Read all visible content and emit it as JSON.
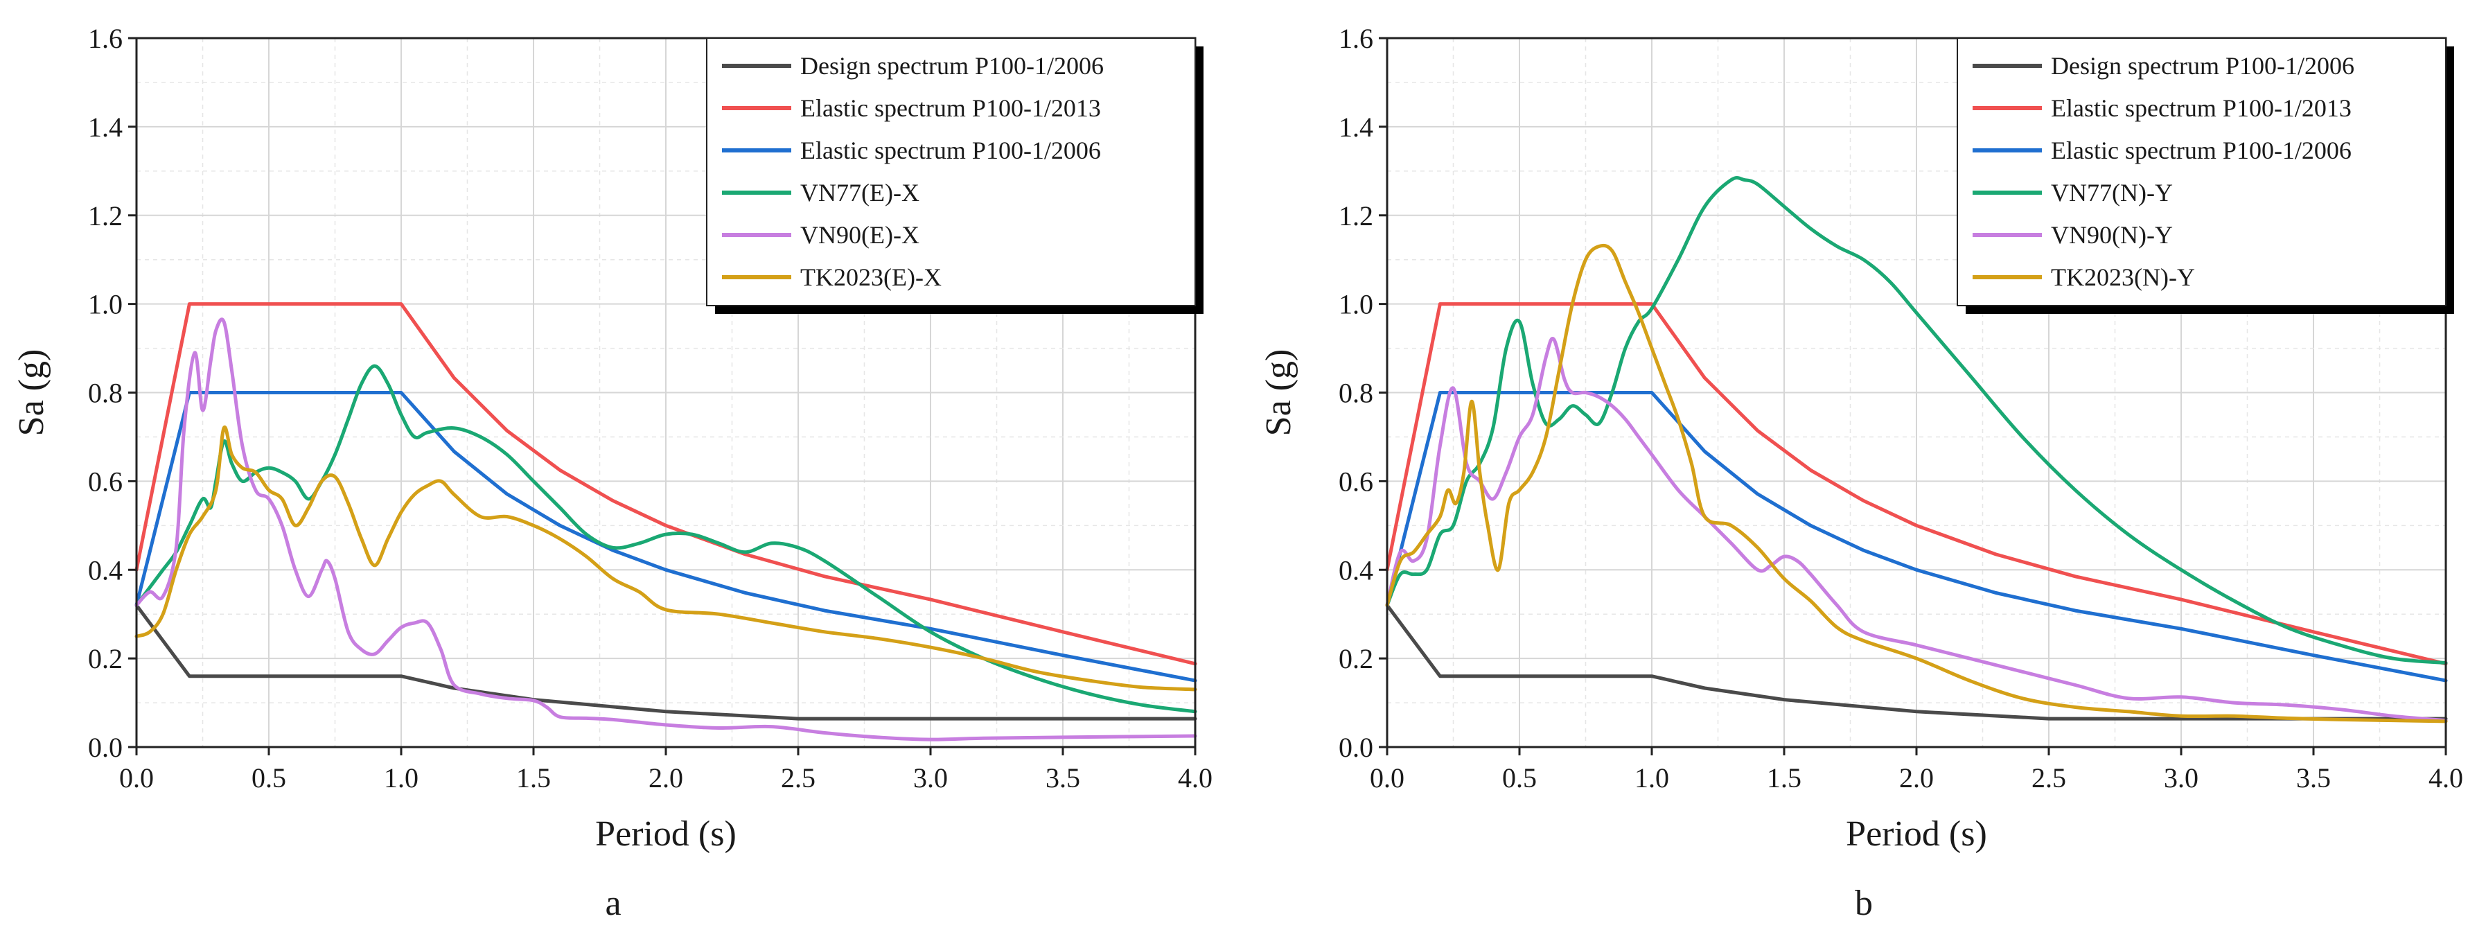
{
  "panels": [
    {
      "label": "a",
      "xlabel": "Period (s)",
      "ylabel": "Sa (g)"
    },
    {
      "label": "b",
      "xlabel": "Period (s)",
      "ylabel": "Sa (g)"
    }
  ],
  "colors": {
    "design": "#4a4a4a",
    "elastic_2013": "#f05050",
    "elastic_2006": "#1f6fd0",
    "vn77": "#1aa873",
    "vn90": "#c77ee0",
    "tk2023": "#d4a017"
  },
  "chart_data": [
    {
      "type": "line",
      "xlim": [
        0.0,
        4.0
      ],
      "ylim": [
        0.0,
        1.6
      ],
      "xticks": [
        "0.0",
        "0.5",
        "1.0",
        "1.5",
        "2.0",
        "2.5",
        "3.0",
        "3.5",
        "4.0"
      ],
      "yticks": [
        "0.0",
        "0.2",
        "0.4",
        "0.6",
        "0.8",
        "1.0",
        "1.2",
        "1.4",
        "1.6"
      ],
      "grid": true,
      "legend_position": "top-right",
      "series": [
        {
          "name": "Design spectrum P100-1/2006",
          "color_key": "design",
          "x": [
            0,
            0.2,
            1.0,
            1.2,
            1.5,
            2.0,
            2.5,
            3.0,
            3.5,
            4.0
          ],
          "y": [
            0.32,
            0.16,
            0.16,
            0.133,
            0.107,
            0.08,
            0.064,
            0.064,
            0.064,
            0.064
          ]
        },
        {
          "name": "Elastic spectrum P100-1/2013",
          "color_key": "elastic_2013",
          "x": [
            0,
            0.2,
            1.0,
            1.2,
            1.4,
            1.6,
            1.8,
            2.0,
            2.3,
            2.6,
            3.0,
            3.5,
            4.0
          ],
          "y": [
            0.4,
            1.0,
            1.0,
            0.833,
            0.714,
            0.625,
            0.556,
            0.5,
            0.435,
            0.385,
            0.333,
            0.26,
            0.188
          ]
        },
        {
          "name": "Elastic spectrum P100-1/2006",
          "color_key": "elastic_2006",
          "x": [
            0,
            0.2,
            1.0,
            1.2,
            1.4,
            1.6,
            1.8,
            2.0,
            2.3,
            2.6,
            3.0,
            3.5,
            4.0
          ],
          "y": [
            0.32,
            0.8,
            0.8,
            0.667,
            0.571,
            0.5,
            0.444,
            0.4,
            0.348,
            0.308,
            0.267,
            0.207,
            0.15
          ]
        },
        {
          "name": "VN77(E)-X",
          "color_key": "vn77",
          "x": [
            0,
            0.05,
            0.1,
            0.15,
            0.2,
            0.25,
            0.28,
            0.3,
            0.33,
            0.36,
            0.4,
            0.45,
            0.5,
            0.55,
            0.6,
            0.65,
            0.7,
            0.75,
            0.8,
            0.85,
            0.9,
            0.95,
            1.0,
            1.05,
            1.1,
            1.2,
            1.3,
            1.4,
            1.5,
            1.6,
            1.7,
            1.8,
            1.9,
            2.0,
            2.1,
            2.2,
            2.3,
            2.4,
            2.5,
            2.6,
            2.8,
            3.0,
            3.2,
            3.4,
            3.6,
            3.8,
            4.0
          ],
          "y": [
            0.32,
            0.36,
            0.4,
            0.44,
            0.5,
            0.56,
            0.54,
            0.6,
            0.69,
            0.64,
            0.6,
            0.62,
            0.63,
            0.62,
            0.6,
            0.56,
            0.6,
            0.66,
            0.74,
            0.82,
            0.86,
            0.82,
            0.75,
            0.7,
            0.71,
            0.72,
            0.7,
            0.66,
            0.6,
            0.54,
            0.48,
            0.45,
            0.46,
            0.48,
            0.48,
            0.46,
            0.44,
            0.46,
            0.45,
            0.42,
            0.34,
            0.26,
            0.2,
            0.155,
            0.12,
            0.095,
            0.08
          ]
        },
        {
          "name": "VN90(E)-X",
          "color_key": "vn90",
          "x": [
            0,
            0.05,
            0.1,
            0.15,
            0.18,
            0.22,
            0.25,
            0.28,
            0.3,
            0.33,
            0.36,
            0.4,
            0.45,
            0.5,
            0.55,
            0.6,
            0.65,
            0.7,
            0.72,
            0.75,
            0.8,
            0.85,
            0.9,
            0.95,
            1.0,
            1.05,
            1.1,
            1.15,
            1.2,
            1.3,
            1.4,
            1.5,
            1.55,
            1.6,
            1.7,
            1.8,
            2.0,
            2.2,
            2.4,
            2.6,
            2.8,
            3.0,
            3.2,
            3.5,
            4.0
          ],
          "y": [
            0.32,
            0.35,
            0.34,
            0.45,
            0.72,
            0.89,
            0.76,
            0.87,
            0.94,
            0.96,
            0.85,
            0.68,
            0.58,
            0.56,
            0.5,
            0.4,
            0.34,
            0.4,
            0.42,
            0.38,
            0.26,
            0.22,
            0.21,
            0.24,
            0.27,
            0.28,
            0.28,
            0.22,
            0.14,
            0.12,
            0.11,
            0.105,
            0.09,
            0.068,
            0.065,
            0.062,
            0.05,
            0.043,
            0.046,
            0.032,
            0.022,
            0.017,
            0.02,
            0.022,
            0.025
          ]
        },
        {
          "name": "TK2023(E)-X",
          "color_key": "tk2023",
          "x": [
            0,
            0.05,
            0.1,
            0.15,
            0.2,
            0.25,
            0.3,
            0.33,
            0.36,
            0.4,
            0.45,
            0.5,
            0.55,
            0.6,
            0.65,
            0.7,
            0.75,
            0.8,
            0.85,
            0.9,
            0.95,
            1.0,
            1.05,
            1.1,
            1.15,
            1.2,
            1.3,
            1.4,
            1.5,
            1.6,
            1.7,
            1.8,
            1.9,
            2.0,
            2.2,
            2.4,
            2.6,
            2.8,
            3.0,
            3.2,
            3.4,
            3.6,
            3.8,
            4.0
          ],
          "y": [
            0.25,
            0.26,
            0.3,
            0.4,
            0.48,
            0.52,
            0.58,
            0.72,
            0.66,
            0.63,
            0.62,
            0.58,
            0.56,
            0.5,
            0.54,
            0.6,
            0.61,
            0.55,
            0.47,
            0.41,
            0.47,
            0.53,
            0.57,
            0.59,
            0.6,
            0.57,
            0.52,
            0.52,
            0.5,
            0.47,
            0.43,
            0.38,
            0.35,
            0.31,
            0.3,
            0.28,
            0.26,
            0.245,
            0.225,
            0.2,
            0.17,
            0.15,
            0.135,
            0.13
          ]
        }
      ]
    },
    {
      "type": "line",
      "xlim": [
        0.0,
        4.0
      ],
      "ylim": [
        0.0,
        1.6
      ],
      "xticks": [
        "0.0",
        "0.5",
        "1.0",
        "1.5",
        "2.0",
        "2.5",
        "3.0",
        "3.5",
        "4.0"
      ],
      "yticks": [
        "0.0",
        "0.2",
        "0.4",
        "0.6",
        "0.8",
        "1.0",
        "1.2",
        "1.4",
        "1.6"
      ],
      "grid": true,
      "legend_position": "top-right",
      "series": [
        {
          "name": "Design spectrum P100-1/2006",
          "color_key": "design",
          "x": [
            0,
            0.2,
            1.0,
            1.2,
            1.5,
            2.0,
            2.5,
            3.0,
            3.5,
            4.0
          ],
          "y": [
            0.32,
            0.16,
            0.16,
            0.133,
            0.107,
            0.08,
            0.064,
            0.064,
            0.064,
            0.064
          ]
        },
        {
          "name": "Elastic spectrum P100-1/2013",
          "color_key": "elastic_2013",
          "x": [
            0,
            0.2,
            1.0,
            1.2,
            1.4,
            1.6,
            1.8,
            2.0,
            2.3,
            2.6,
            3.0,
            3.5,
            4.0
          ],
          "y": [
            0.4,
            1.0,
            1.0,
            0.833,
            0.714,
            0.625,
            0.556,
            0.5,
            0.435,
            0.385,
            0.333,
            0.26,
            0.188
          ]
        },
        {
          "name": "Elastic spectrum P100-1/2006",
          "color_key": "elastic_2006",
          "x": [
            0,
            0.2,
            1.0,
            1.2,
            1.4,
            1.6,
            1.8,
            2.0,
            2.3,
            2.6,
            3.0,
            3.5,
            4.0
          ],
          "y": [
            0.32,
            0.8,
            0.8,
            0.667,
            0.571,
            0.5,
            0.444,
            0.4,
            0.348,
            0.308,
            0.267,
            0.207,
            0.15
          ]
        },
        {
          "name": "VN77(N)-Y",
          "color_key": "vn77",
          "x": [
            0,
            0.05,
            0.1,
            0.15,
            0.2,
            0.25,
            0.3,
            0.35,
            0.4,
            0.45,
            0.5,
            0.55,
            0.6,
            0.65,
            0.7,
            0.75,
            0.8,
            0.85,
            0.9,
            0.95,
            1.0,
            1.1,
            1.2,
            1.3,
            1.35,
            1.4,
            1.5,
            1.6,
            1.7,
            1.8,
            1.9,
            2.0,
            2.2,
            2.4,
            2.6,
            2.8,
            3.0,
            3.2,
            3.4,
            3.6,
            3.8,
            4.0
          ],
          "y": [
            0.32,
            0.39,
            0.39,
            0.4,
            0.48,
            0.5,
            0.6,
            0.64,
            0.72,
            0.9,
            0.96,
            0.82,
            0.73,
            0.74,
            0.77,
            0.75,
            0.73,
            0.8,
            0.9,
            0.96,
            0.99,
            1.1,
            1.22,
            1.28,
            1.28,
            1.27,
            1.22,
            1.17,
            1.13,
            1.1,
            1.05,
            0.98,
            0.84,
            0.7,
            0.58,
            0.48,
            0.4,
            0.33,
            0.27,
            0.23,
            0.2,
            0.19
          ]
        },
        {
          "name": "VN90(N)-Y",
          "color_key": "vn90",
          "x": [
            0,
            0.05,
            0.1,
            0.15,
            0.2,
            0.25,
            0.3,
            0.35,
            0.4,
            0.45,
            0.5,
            0.55,
            0.6,
            0.63,
            0.67,
            0.7,
            0.75,
            0.8,
            0.85,
            0.9,
            0.95,
            1.0,
            1.1,
            1.2,
            1.3,
            1.4,
            1.45,
            1.5,
            1.55,
            1.6,
            1.7,
            1.8,
            2.0,
            2.2,
            2.4,
            2.6,
            2.8,
            3.0,
            3.2,
            3.4,
            3.6,
            3.8,
            4.0
          ],
          "y": [
            0.32,
            0.44,
            0.42,
            0.47,
            0.68,
            0.81,
            0.64,
            0.6,
            0.56,
            0.62,
            0.7,
            0.75,
            0.88,
            0.92,
            0.83,
            0.8,
            0.8,
            0.79,
            0.77,
            0.74,
            0.7,
            0.66,
            0.58,
            0.52,
            0.46,
            0.4,
            0.41,
            0.43,
            0.42,
            0.39,
            0.32,
            0.26,
            0.23,
            0.2,
            0.17,
            0.14,
            0.11,
            0.113,
            0.1,
            0.095,
            0.085,
            0.07,
            0.06
          ]
        },
        {
          "name": "TK2023(N)-Y",
          "color_key": "tk2023",
          "x": [
            0,
            0.05,
            0.1,
            0.15,
            0.2,
            0.23,
            0.26,
            0.29,
            0.32,
            0.35,
            0.38,
            0.42,
            0.46,
            0.5,
            0.55,
            0.6,
            0.65,
            0.7,
            0.75,
            0.8,
            0.85,
            0.9,
            0.95,
            1.0,
            1.05,
            1.1,
            1.15,
            1.2,
            1.3,
            1.4,
            1.5,
            1.6,
            1.7,
            1.8,
            2.0,
            2.2,
            2.4,
            2.6,
            2.8,
            3.0,
            3.2,
            3.4,
            3.6,
            3.8,
            4.0
          ],
          "y": [
            0.32,
            0.42,
            0.44,
            0.48,
            0.52,
            0.58,
            0.55,
            0.62,
            0.78,
            0.62,
            0.5,
            0.4,
            0.55,
            0.58,
            0.62,
            0.7,
            0.85,
            1.0,
            1.1,
            1.13,
            1.12,
            1.05,
            0.98,
            0.9,
            0.82,
            0.74,
            0.64,
            0.52,
            0.5,
            0.45,
            0.38,
            0.33,
            0.27,
            0.24,
            0.2,
            0.15,
            0.11,
            0.09,
            0.08,
            0.07,
            0.07,
            0.065,
            0.062,
            0.06,
            0.058
          ]
        }
      ]
    }
  ]
}
